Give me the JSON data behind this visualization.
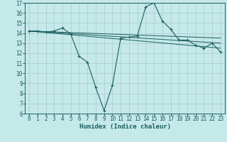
{
  "xlabel": "Humidex (Indice chaleur)",
  "background_color": "#c5e8e8",
  "grid_color": "#aed0d0",
  "line_color": "#1a5f5f",
  "xlim": [
    -0.5,
    23.5
  ],
  "ylim": [
    6,
    17
  ],
  "xticks": [
    0,
    1,
    2,
    3,
    4,
    5,
    6,
    7,
    8,
    9,
    10,
    11,
    12,
    13,
    14,
    15,
    16,
    17,
    18,
    19,
    20,
    21,
    22,
    23
  ],
  "yticks": [
    6,
    7,
    8,
    9,
    10,
    11,
    12,
    13,
    14,
    15,
    16,
    17
  ],
  "main_series": {
    "x": [
      0,
      1,
      2,
      3,
      4,
      5,
      6,
      7,
      8,
      9,
      10,
      11,
      12,
      13,
      14,
      15,
      16,
      17,
      18,
      19,
      20,
      21,
      22,
      23
    ],
    "y": [
      14.2,
      14.2,
      14.1,
      14.2,
      14.5,
      13.9,
      11.7,
      11.1,
      8.6,
      6.3,
      8.8,
      13.5,
      13.6,
      13.7,
      16.6,
      17.0,
      15.2,
      14.4,
      13.3,
      13.3,
      12.8,
      12.5,
      13.0,
      12.1
    ]
  },
  "trend_lines": [
    {
      "x": [
        0,
        23
      ],
      "y": [
        14.2,
        13.5
      ]
    },
    {
      "x": [
        0,
        23
      ],
      "y": [
        14.2,
        13.0
      ]
    },
    {
      "x": [
        0,
        23
      ],
      "y": [
        14.2,
        12.5
      ]
    }
  ]
}
